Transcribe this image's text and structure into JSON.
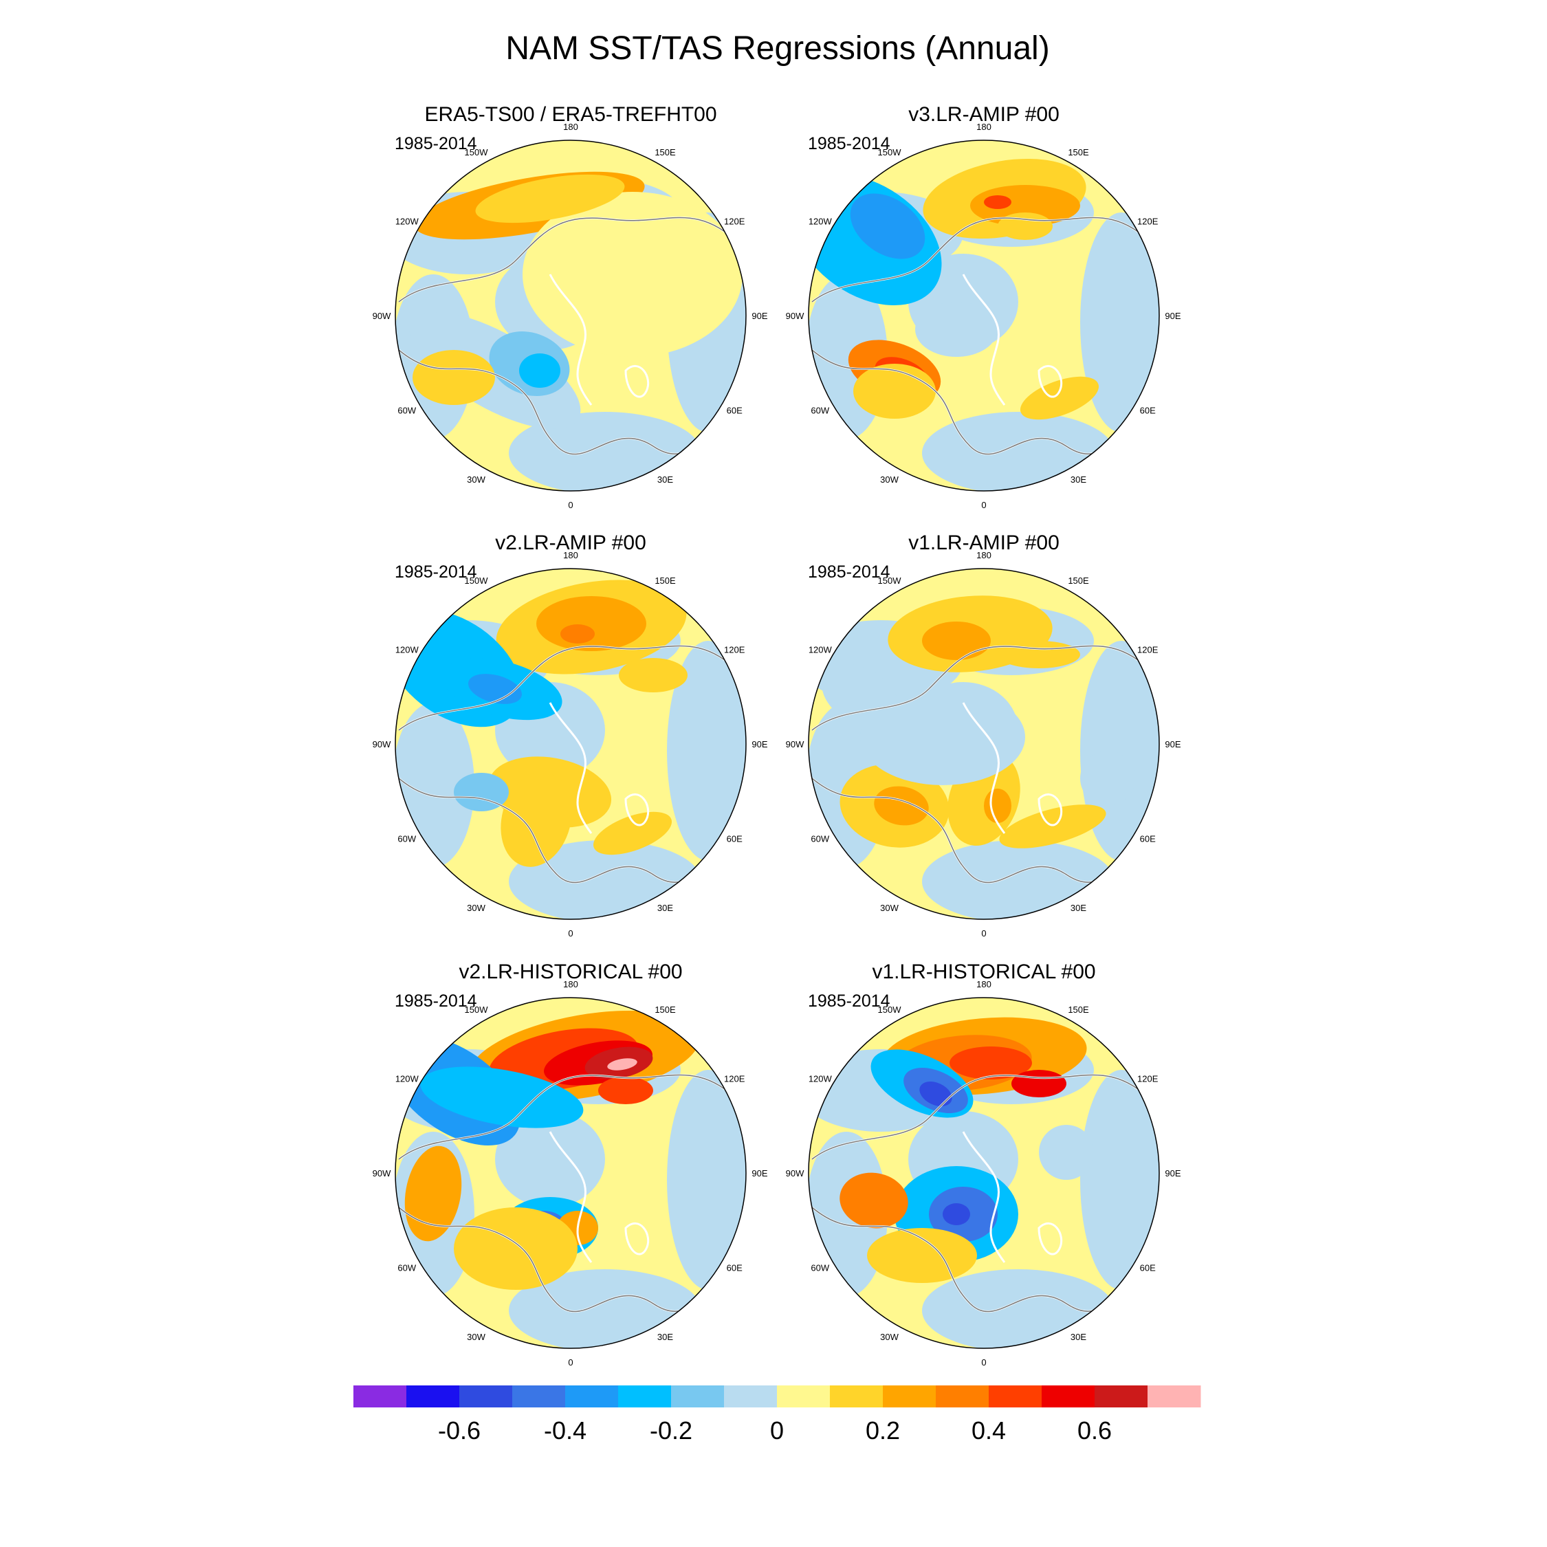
{
  "figure": {
    "title": "NAM SST/TAS Regressions (Annual)"
  },
  "panels": [
    {
      "title": "ERA5-TS00 / ERA5-TREFHT00",
      "period": "1985-2014",
      "variant": "era5"
    },
    {
      "title": "v3.LR-AMIP  #00",
      "period": "1985-2014",
      "variant": "v3amip"
    },
    {
      "title": "v2.LR-AMIP  #00",
      "period": "1985-2014",
      "variant": "v2amip"
    },
    {
      "title": "v1.LR-AMIP  #00",
      "period": "1985-2014",
      "variant": "v1amip"
    },
    {
      "title": "v2.LR-HISTORICAL  #00",
      "period": "1985-2014",
      "variant": "v2hist"
    },
    {
      "title": "v1.LR-HISTORICAL  #00",
      "period": "1985-2014",
      "variant": "v1hist"
    }
  ],
  "longitude_labels": [
    "180",
    "150E",
    "120E",
    "90E",
    "60E",
    "30E",
    "0",
    "30W",
    "60W",
    "90W",
    "120W",
    "150W"
  ],
  "colorbar": {
    "colors": [
      "#8a2be2",
      "#1a10f0",
      "#2f4be0",
      "#3a76e6",
      "#1e9af7",
      "#00bfff",
      "#78c8f0",
      "#b9dcf0",
      "#fff88f",
      "#ffd42a",
      "#ffa500",
      "#ff7f00",
      "#ff3f00",
      "#ee0000",
      "#cc1a1a",
      "#ffb3b3"
    ],
    "tick_labels": [
      "-0.6",
      "-0.4",
      "-0.2",
      "0",
      "0.2",
      "0.4",
      "0.6"
    ],
    "tick_values": [
      -0.6,
      -0.4,
      -0.2,
      0,
      0.2,
      0.4,
      0.6
    ],
    "range": [
      -0.8,
      0.8
    ]
  }
}
